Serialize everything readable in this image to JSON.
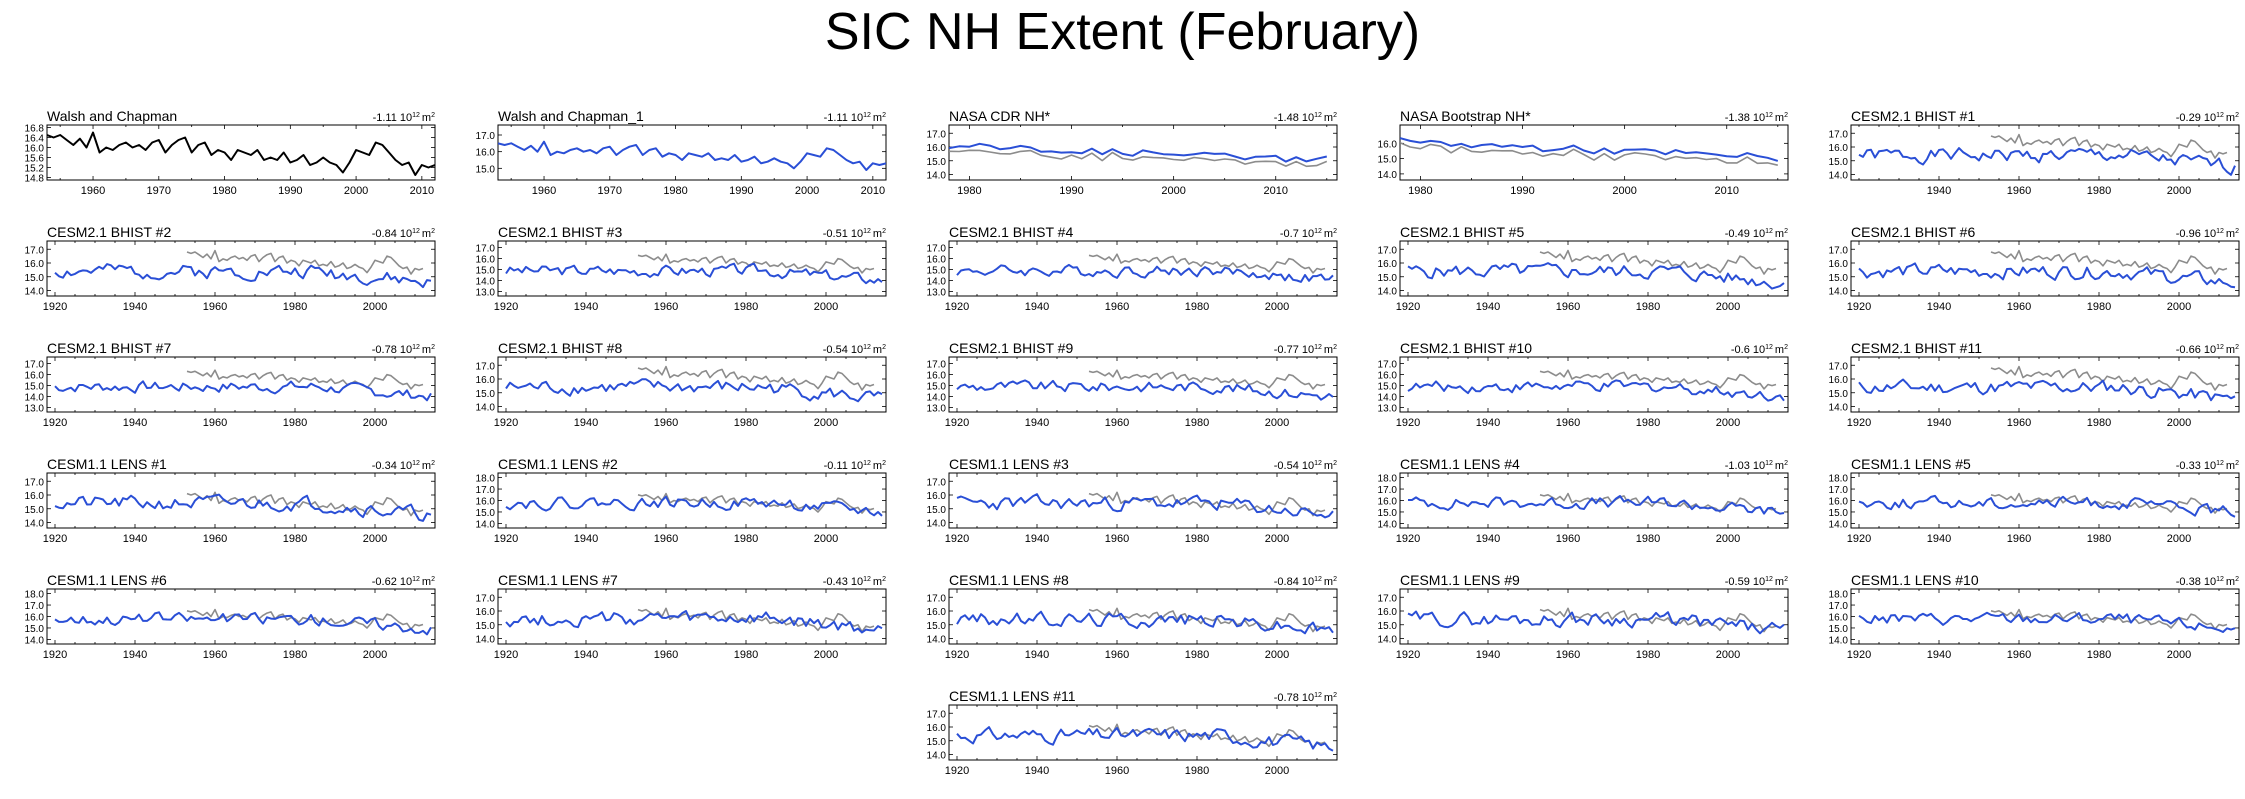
{
  "title": "SIC NH Extent (February)",
  "colors": {
    "observed": "#000000",
    "model": "#2a4fd6",
    "reference": "#8c8c8c"
  },
  "unit_text": "10",
  "unit_exp": "12",
  "unit_m": "m",
  "unit_m_exp": "2",
  "chart_data": [
    {
      "type": "line",
      "title": "Walsh and Chapman",
      "trend": "-1.11",
      "xlim": [
        1953,
        2012
      ],
      "xticks": [
        1960,
        1970,
        1980,
        1990,
        2000,
        2010
      ],
      "ylim": [
        14.7,
        16.9
      ],
      "yticks": [
        "14.8",
        "15.2",
        "15.6",
        "16.0",
        "16.4",
        "16.8"
      ],
      "style": "obs",
      "series": [
        {
          "x_start": 1953,
          "values": [
            16.5,
            16.4,
            16.5,
            16.3,
            16.1,
            16.35,
            16.0,
            16.6,
            15.8,
            16.0,
            15.9,
            16.1,
            16.2,
            16.0,
            16.1,
            15.9,
            16.2,
            16.3,
            15.8,
            16.1,
            16.3,
            16.4,
            15.8,
            16.1,
            16.2,
            15.7,
            15.9,
            15.8,
            15.5,
            15.9,
            15.8,
            15.7,
            15.9,
            15.5,
            15.6,
            15.5,
            15.8,
            15.4,
            15.5,
            15.7,
            15.3,
            15.4,
            15.6,
            15.4,
            15.3,
            15.0,
            15.4,
            15.9,
            15.8,
            15.7,
            16.2,
            16.1,
            15.8,
            15.5,
            15.3,
            15.4,
            14.9,
            15.3,
            15.2,
            15.3
          ]
        }
      ]
    },
    {
      "type": "line",
      "title": "Walsh and Chapman_1",
      "trend": "-1.11",
      "xlim": [
        1953,
        2012
      ],
      "xticks": [
        1960,
        1970,
        1980,
        1990,
        2000,
        2010
      ],
      "ylim": [
        14.3,
        17.6
      ],
      "yticks": [
        "15.0",
        "16.0",
        "17.0"
      ],
      "style": "single",
      "series": [
        {
          "x_start": 1953,
          "values": [
            16.5,
            16.4,
            16.5,
            16.3,
            16.1,
            16.35,
            16.0,
            16.6,
            15.8,
            16.0,
            15.9,
            16.1,
            16.2,
            16.0,
            16.1,
            15.9,
            16.2,
            16.3,
            15.8,
            16.1,
            16.3,
            16.4,
            15.8,
            16.1,
            16.2,
            15.7,
            15.9,
            15.8,
            15.5,
            15.9,
            15.8,
            15.7,
            15.9,
            15.5,
            15.6,
            15.5,
            15.8,
            15.4,
            15.5,
            15.7,
            15.3,
            15.4,
            15.6,
            15.4,
            15.3,
            15.0,
            15.4,
            15.9,
            15.8,
            15.7,
            16.2,
            16.1,
            15.8,
            15.5,
            15.3,
            15.4,
            14.9,
            15.3,
            15.2,
            15.3
          ]
        }
      ]
    },
    {
      "type": "line",
      "title": "NASA CDR NH*",
      "trend": "-1.48",
      "xlim": [
        1978,
        2016
      ],
      "xticks": [
        1980,
        1990,
        2000,
        2010
      ],
      "ylim": [
        13.6,
        17.6
      ],
      "yticks": [
        "14.0",
        "15.0",
        "16.0",
        "17.0"
      ],
      "style": "single",
      "seed": 101
    },
    {
      "type": "line",
      "title": "NASA Bootstrap NH*",
      "trend": "-1.38",
      "xlim": [
        1978,
        2016
      ],
      "xticks": [
        1980,
        1990,
        2000,
        2010
      ],
      "ylim": [
        13.6,
        17.2
      ],
      "yticks": [
        "14.0",
        "15.0",
        "16.0"
      ],
      "style": "single",
      "seed": 102
    },
    {
      "type": "line",
      "title": "CESM2.1 BHIST #1",
      "trend": "-0.29",
      "xlim": [
        1918,
        2015
      ],
      "xticks": [
        1940,
        1960,
        1980,
        2000
      ],
      "ylim": [
        13.6,
        17.6
      ],
      "yticks": [
        "14.0",
        "15.0",
        "16.0",
        "17.0"
      ],
      "style": "model",
      "seed": 1
    },
    {
      "type": "line",
      "title": "CESM2.1 BHIST #2",
      "trend": "-0.84",
      "xlim": [
        1918,
        2015
      ],
      "xticks": [
        1920,
        1940,
        1960,
        1980,
        2000
      ],
      "ylim": [
        13.6,
        17.6
      ],
      "yticks": [
        "14.0",
        "15.0",
        "16.0",
        "17.0"
      ],
      "style": "model",
      "seed": 2
    },
    {
      "type": "line",
      "title": "CESM2.1 BHIST #3",
      "trend": "-0.51",
      "xlim": [
        1918,
        2015
      ],
      "xticks": [
        1920,
        1940,
        1960,
        1980,
        2000
      ],
      "ylim": [
        12.6,
        17.6
      ],
      "yticks": [
        "13.0",
        "14.0",
        "15.0",
        "16.0",
        "17.0"
      ],
      "style": "model",
      "seed": 3
    },
    {
      "type": "line",
      "title": "CESM2.1 BHIST #4",
      "trend": "-0.7",
      "xlim": [
        1918,
        2015
      ],
      "xticks": [
        1920,
        1940,
        1960,
        1980,
        2000
      ],
      "ylim": [
        12.6,
        17.6
      ],
      "yticks": [
        "13.0",
        "14.0",
        "15.0",
        "16.0",
        "17.0"
      ],
      "style": "model",
      "seed": 4
    },
    {
      "type": "line",
      "title": "CESM2.1 BHIST #5",
      "trend": "-0.49",
      "xlim": [
        1918,
        2015
      ],
      "xticks": [
        1920,
        1940,
        1960,
        1980,
        2000
      ],
      "ylim": [
        13.6,
        17.6
      ],
      "yticks": [
        "14.0",
        "15.0",
        "16.0",
        "17.0"
      ],
      "style": "model",
      "seed": 5
    },
    {
      "type": "line",
      "title": "CESM2.1 BHIST #6",
      "trend": "-0.96",
      "xlim": [
        1918,
        2015
      ],
      "xticks": [
        1920,
        1940,
        1960,
        1980,
        2000
      ],
      "ylim": [
        13.6,
        17.6
      ],
      "yticks": [
        "14.0",
        "15.0",
        "16.0",
        "17.0"
      ],
      "style": "model",
      "seed": 6
    },
    {
      "type": "line",
      "title": "CESM2.1 BHIST #7",
      "trend": "-0.78",
      "xlim": [
        1918,
        2015
      ],
      "xticks": [
        1920,
        1940,
        1960,
        1980,
        2000
      ],
      "ylim": [
        12.6,
        17.6
      ],
      "yticks": [
        "13.0",
        "14.0",
        "15.0",
        "16.0",
        "17.0"
      ],
      "style": "model",
      "seed": 7
    },
    {
      "type": "line",
      "title": "CESM2.1 BHIST #8",
      "trend": "-0.54",
      "xlim": [
        1918,
        2015
      ],
      "xticks": [
        1920,
        1940,
        1960,
        1980,
        2000
      ],
      "ylim": [
        13.6,
        17.6
      ],
      "yticks": [
        "14.0",
        "15.0",
        "16.0",
        "17.0"
      ],
      "style": "model",
      "seed": 8
    },
    {
      "type": "line",
      "title": "CESM2.1 BHIST #9",
      "trend": "-0.77",
      "xlim": [
        1918,
        2015
      ],
      "xticks": [
        1920,
        1940,
        1960,
        1980,
        2000
      ],
      "ylim": [
        12.6,
        17.6
      ],
      "yticks": [
        "13.0",
        "14.0",
        "15.0",
        "16.0",
        "17.0"
      ],
      "style": "model",
      "seed": 9
    },
    {
      "type": "line",
      "title": "CESM2.1 BHIST #10",
      "trend": "-0.6",
      "xlim": [
        1918,
        2015
      ],
      "xticks": [
        1920,
        1940,
        1960,
        1980,
        2000
      ],
      "ylim": [
        12.6,
        17.6
      ],
      "yticks": [
        "13.0",
        "14.0",
        "15.0",
        "16.0",
        "17.0"
      ],
      "style": "model",
      "seed": 10
    },
    {
      "type": "line",
      "title": "CESM2.1 BHIST #11",
      "trend": "-0.66",
      "xlim": [
        1918,
        2015
      ],
      "xticks": [
        1920,
        1940,
        1960,
        1980,
        2000
      ],
      "ylim": [
        13.6,
        17.6
      ],
      "yticks": [
        "14.0",
        "15.0",
        "16.0",
        "17.0"
      ],
      "style": "model",
      "seed": 11
    },
    {
      "type": "line",
      "title": "CESM1.1 LENS #1",
      "trend": "-0.34",
      "xlim": [
        1918,
        2015
      ],
      "xticks": [
        1920,
        1940,
        1960,
        1980,
        2000
      ],
      "ylim": [
        13.6,
        17.6
      ],
      "yticks": [
        "14.0",
        "15.0",
        "16.0",
        "17.0"
      ],
      "style": "model",
      "seed": 21
    },
    {
      "type": "line",
      "title": "CESM1.1 LENS #2",
      "trend": "-0.11",
      "xlim": [
        1918,
        2015
      ],
      "xticks": [
        1920,
        1940,
        1960,
        1980,
        2000
      ],
      "ylim": [
        13.6,
        18.4
      ],
      "yticks": [
        "14.0",
        "15.0",
        "16.0",
        "17.0",
        "18.0"
      ],
      "style": "model",
      "seed": 22
    },
    {
      "type": "line",
      "title": "CESM1.1 LENS #3",
      "trend": "-0.54",
      "xlim": [
        1918,
        2015
      ],
      "xticks": [
        1920,
        1940,
        1960,
        1980,
        2000
      ],
      "ylim": [
        13.6,
        17.6
      ],
      "yticks": [
        "14.0",
        "15.0",
        "16.0",
        "17.0"
      ],
      "style": "model",
      "seed": 23
    },
    {
      "type": "line",
      "title": "CESM1.1 LENS #4",
      "trend": "-1.03",
      "xlim": [
        1918,
        2015
      ],
      "xticks": [
        1920,
        1940,
        1960,
        1980,
        2000
      ],
      "ylim": [
        13.6,
        18.4
      ],
      "yticks": [
        "14.0",
        "15.0",
        "16.0",
        "17.0",
        "18.0"
      ],
      "style": "model",
      "seed": 24
    },
    {
      "type": "line",
      "title": "CESM1.1 LENS #5",
      "trend": "-0.33",
      "xlim": [
        1918,
        2015
      ],
      "xticks": [
        1920,
        1940,
        1960,
        1980,
        2000
      ],
      "ylim": [
        13.6,
        18.4
      ],
      "yticks": [
        "14.0",
        "15.0",
        "16.0",
        "17.0",
        "18.0"
      ],
      "style": "model",
      "seed": 25
    },
    {
      "type": "line",
      "title": "CESM1.1 LENS #6",
      "trend": "-0.62",
      "xlim": [
        1918,
        2015
      ],
      "xticks": [
        1920,
        1940,
        1960,
        1980,
        2000
      ],
      "ylim": [
        13.6,
        18.4
      ],
      "yticks": [
        "14.0",
        "15.0",
        "16.0",
        "17.0",
        "18.0"
      ],
      "style": "model",
      "seed": 26
    },
    {
      "type": "line",
      "title": "CESM1.1 LENS #7",
      "trend": "-0.43",
      "xlim": [
        1918,
        2015
      ],
      "xticks": [
        1920,
        1940,
        1960,
        1980,
        2000
      ],
      "ylim": [
        13.6,
        17.6
      ],
      "yticks": [
        "14.0",
        "15.0",
        "16.0",
        "17.0"
      ],
      "style": "model",
      "seed": 27
    },
    {
      "type": "line",
      "title": "CESM1.1 LENS #8",
      "trend": "-0.84",
      "xlim": [
        1918,
        2015
      ],
      "xticks": [
        1920,
        1940,
        1960,
        1980,
        2000
      ],
      "ylim": [
        13.6,
        17.6
      ],
      "yticks": [
        "14.0",
        "15.0",
        "16.0",
        "17.0"
      ],
      "style": "model",
      "seed": 28
    },
    {
      "type": "line",
      "title": "CESM1.1 LENS #9",
      "trend": "-0.59",
      "xlim": [
        1918,
        2015
      ],
      "xticks": [
        1920,
        1940,
        1960,
        1980,
        2000
      ],
      "ylim": [
        13.6,
        17.6
      ],
      "yticks": [
        "14.0",
        "15.0",
        "16.0",
        "17.0"
      ],
      "style": "model",
      "seed": 29
    },
    {
      "type": "line",
      "title": "CESM1.1 LENS #10",
      "trend": "-0.38",
      "xlim": [
        1918,
        2015
      ],
      "xticks": [
        1920,
        1940,
        1960,
        1980,
        2000
      ],
      "ylim": [
        13.6,
        18.4
      ],
      "yticks": [
        "14.0",
        "15.0",
        "16.0",
        "17.0",
        "18.0"
      ],
      "style": "model",
      "seed": 30
    },
    {
      "type": "line",
      "title": "CESM1.1 LENS #11",
      "trend": "-0.78",
      "xlim": [
        1918,
        2015
      ],
      "xticks": [
        1920,
        1940,
        1960,
        1980,
        2000
      ],
      "ylim": [
        13.6,
        17.6
      ],
      "yticks": [
        "14.0",
        "15.0",
        "16.0",
        "17.0"
      ],
      "style": "model",
      "seed": 31
    }
  ]
}
